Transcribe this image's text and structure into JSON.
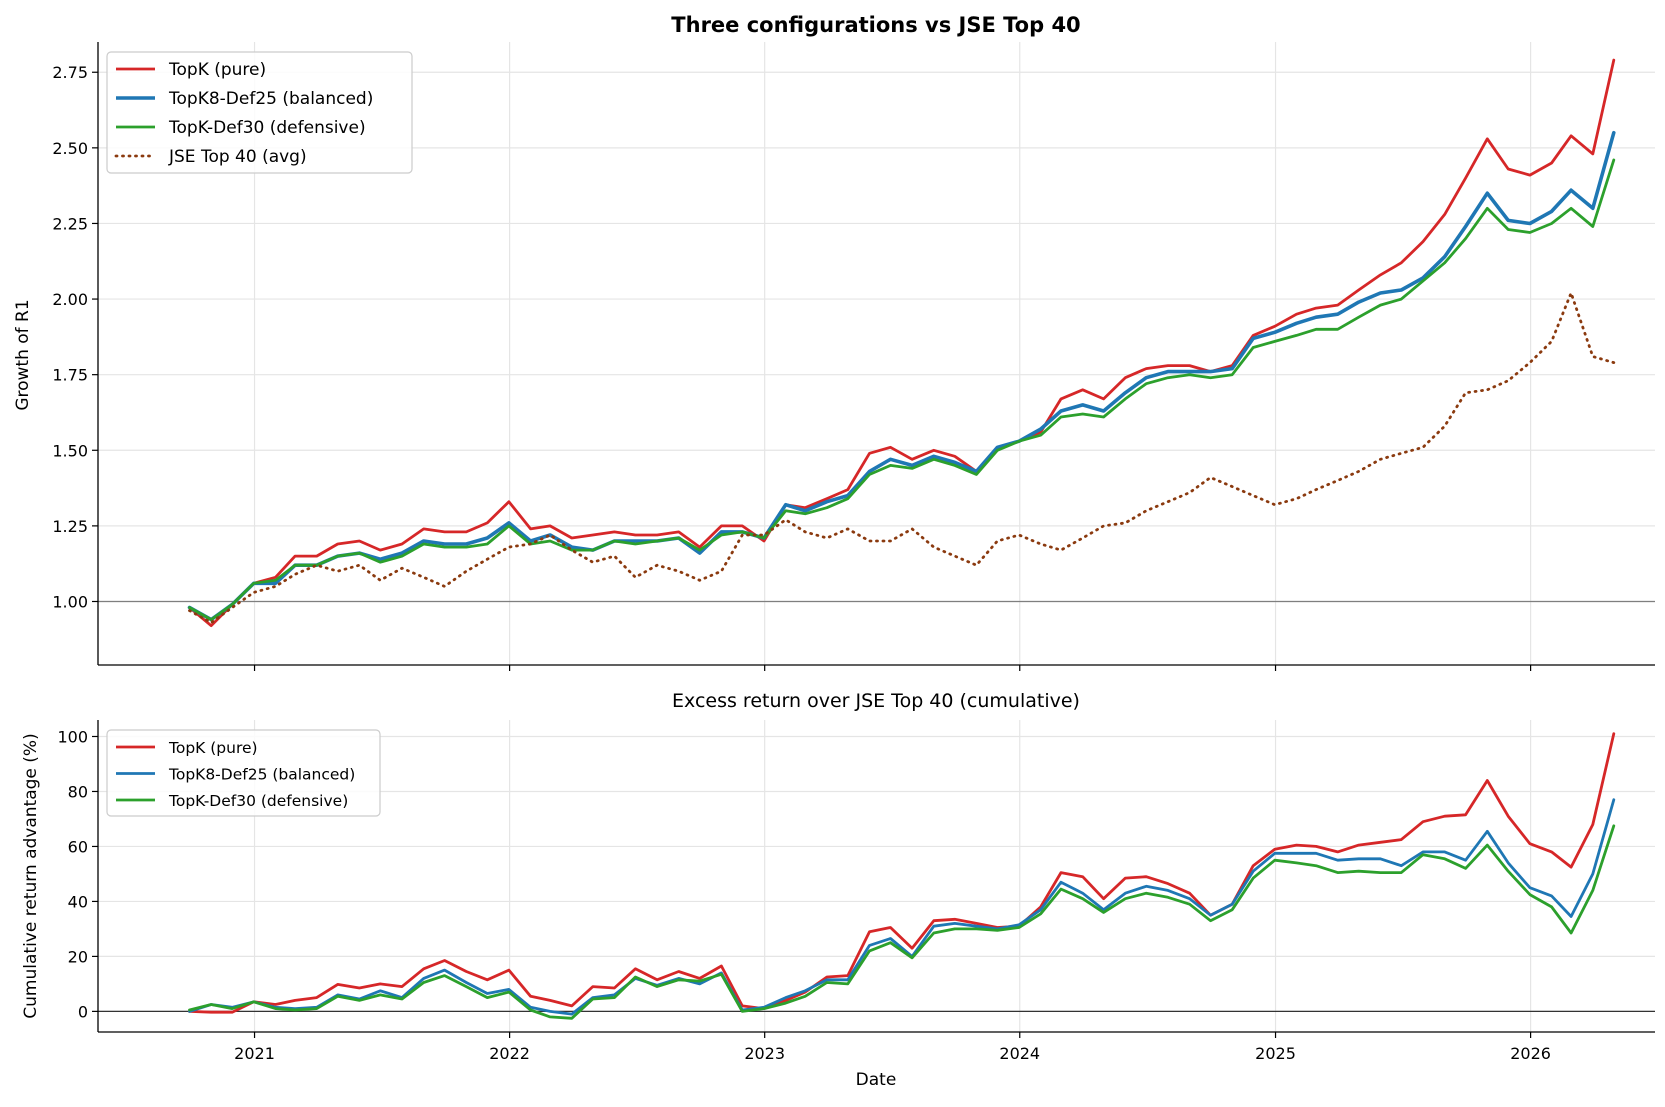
{
  "figure": {
    "xlabel": "Date",
    "x_ticks": [
      "2021",
      "2022",
      "2023",
      "2024",
      "2025",
      "2026"
    ],
    "colors": {
      "topk": "#d62728",
      "balanced": "#1f77b4",
      "defensive": "#2ca02c",
      "jse": "#8b3a0f",
      "grid": "#e5e5e5",
      "axis": "#000000"
    }
  },
  "chart_data": [
    {
      "type": "line",
      "title": "Three configurations vs JSE Top 40",
      "xlabel": "",
      "ylabel": "Growth of R1",
      "ylim": [
        0.79,
        2.85
      ],
      "xlim": [
        "2020-05-22",
        "2026-06-28"
      ],
      "y_ticks": [
        "1.00",
        "1.25",
        "1.50",
        "1.75",
        "2.00",
        "2.25",
        "2.50",
        "2.75"
      ],
      "reference_line": 1.0,
      "grid": true,
      "legend": "top-left",
      "x": [
        "2020-09",
        "2020-10",
        "2020-11",
        "2020-12",
        "2021-01",
        "2021-02",
        "2021-03",
        "2021-04",
        "2021-05",
        "2021-06",
        "2021-07",
        "2021-08",
        "2021-09",
        "2021-10",
        "2021-11",
        "2021-12",
        "2022-01",
        "2022-02",
        "2022-03",
        "2022-04",
        "2022-05",
        "2022-06",
        "2022-07",
        "2022-08",
        "2022-09",
        "2022-10",
        "2022-11",
        "2022-12",
        "2023-01",
        "2023-02",
        "2023-03",
        "2023-04",
        "2023-05",
        "2023-06",
        "2023-07",
        "2023-08",
        "2023-09",
        "2023-10",
        "2023-11",
        "2023-12",
        "2024-01",
        "2024-02",
        "2024-03",
        "2024-04",
        "2024-05",
        "2024-06",
        "2024-07",
        "2024-08",
        "2024-09",
        "2024-10",
        "2024-11",
        "2024-12",
        "2025-01",
        "2025-02",
        "2025-03",
        "2025-04",
        "2025-05",
        "2025-06",
        "2025-07",
        "2025-08",
        "2025-09",
        "2025-10",
        "2025-11",
        "2025-12",
        "2026-01",
        "2026-02",
        "2026-03",
        "2026-04"
      ],
      "series": [
        {
          "name": "TopK (pure)",
          "color": "#d62728",
          "style": "solid",
          "values": [
            0.98,
            0.92,
            0.99,
            1.06,
            1.08,
            1.15,
            1.15,
            1.19,
            1.2,
            1.17,
            1.19,
            1.24,
            1.23,
            1.23,
            1.26,
            1.33,
            1.24,
            1.25,
            1.21,
            1.22,
            1.23,
            1.22,
            1.22,
            1.23,
            1.18,
            1.25,
            1.25,
            1.2,
            1.32,
            1.31,
            1.34,
            1.37,
            1.49,
            1.51,
            1.47,
            1.5,
            1.48,
            1.43,
            1.51,
            1.53,
            1.56,
            1.67,
            1.7,
            1.67,
            1.74,
            1.77,
            1.78,
            1.78,
            1.76,
            1.78,
            1.88,
            1.91,
            1.95,
            1.97,
            1.98,
            2.03,
            2.08,
            2.12,
            2.19,
            2.28,
            2.4,
            2.53,
            2.43,
            2.41,
            2.45,
            2.54,
            2.48,
            2.79
          ]
        },
        {
          "name": "TopK8-Def25 (balanced)",
          "color": "#1f77b4",
          "style": "solid-thick",
          "values": [
            0.98,
            0.94,
            0.99,
            1.06,
            1.06,
            1.12,
            1.12,
            1.15,
            1.16,
            1.14,
            1.16,
            1.2,
            1.19,
            1.19,
            1.21,
            1.26,
            1.2,
            1.22,
            1.18,
            1.17,
            1.2,
            1.2,
            1.2,
            1.21,
            1.16,
            1.23,
            1.23,
            1.21,
            1.32,
            1.3,
            1.33,
            1.35,
            1.43,
            1.47,
            1.45,
            1.48,
            1.46,
            1.43,
            1.51,
            1.53,
            1.57,
            1.63,
            1.65,
            1.63,
            1.69,
            1.74,
            1.76,
            1.76,
            1.76,
            1.77,
            1.87,
            1.89,
            1.92,
            1.94,
            1.95,
            1.99,
            2.02,
            2.03,
            2.07,
            2.14,
            2.24,
            2.35,
            2.26,
            2.25,
            2.29,
            2.36,
            2.3,
            2.55
          ]
        },
        {
          "name": "TopK-Def30 (defensive)",
          "color": "#2ca02c",
          "style": "solid",
          "values": [
            0.98,
            0.94,
            0.99,
            1.06,
            1.07,
            1.12,
            1.12,
            1.15,
            1.16,
            1.13,
            1.15,
            1.19,
            1.18,
            1.18,
            1.19,
            1.25,
            1.19,
            1.2,
            1.17,
            1.17,
            1.2,
            1.19,
            1.2,
            1.21,
            1.17,
            1.22,
            1.23,
            1.21,
            1.3,
            1.29,
            1.31,
            1.34,
            1.42,
            1.45,
            1.44,
            1.47,
            1.45,
            1.42,
            1.5,
            1.53,
            1.55,
            1.61,
            1.62,
            1.61,
            1.67,
            1.72,
            1.74,
            1.75,
            1.74,
            1.75,
            1.84,
            1.86,
            1.88,
            1.9,
            1.9,
            1.94,
            1.98,
            2.0,
            2.06,
            2.12,
            2.2,
            2.3,
            2.23,
            2.22,
            2.25,
            2.3,
            2.24,
            2.46
          ]
        },
        {
          "name": "JSE Top 40 (avg)",
          "color": "#8b3a0f",
          "style": "dotted",
          "values": [
            0.97,
            0.93,
            0.98,
            1.03,
            1.05,
            1.09,
            1.12,
            1.1,
            1.12,
            1.07,
            1.11,
            1.08,
            1.05,
            1.1,
            1.14,
            1.18,
            1.19,
            1.22,
            1.17,
            1.13,
            1.15,
            1.08,
            1.12,
            1.1,
            1.07,
            1.1,
            1.22,
            1.22,
            1.27,
            1.23,
            1.21,
            1.24,
            1.2,
            1.2,
            1.24,
            1.18,
            1.15,
            1.12,
            1.2,
            1.22,
            1.19,
            1.17,
            1.21,
            1.25,
            1.26,
            1.3,
            1.33,
            1.36,
            1.41,
            1.38,
            1.35,
            1.32,
            1.34,
            1.37,
            1.4,
            1.43,
            1.47,
            1.49,
            1.51,
            1.58,
            1.69,
            1.7,
            1.73,
            1.79,
            1.86,
            2.02,
            1.81,
            1.79
          ]
        }
      ]
    },
    {
      "type": "line",
      "title": "Excess return over JSE Top 40 (cumulative)",
      "xlabel": "Date",
      "ylabel": "Cumulative return advantage (%)",
      "ylim": [
        -7.5,
        106
      ],
      "xlim": [
        "2020-05-22",
        "2026-06-28"
      ],
      "y_ticks": [
        "0",
        "20",
        "40",
        "60",
        "80",
        "100"
      ],
      "reference_line": 0,
      "grid": true,
      "legend": "top-left",
      "x": [
        "2020-09",
        "2020-10",
        "2020-11",
        "2020-12",
        "2021-01",
        "2021-02",
        "2021-03",
        "2021-04",
        "2021-05",
        "2021-06",
        "2021-07",
        "2021-08",
        "2021-09",
        "2021-10",
        "2021-11",
        "2021-12",
        "2022-01",
        "2022-02",
        "2022-03",
        "2022-04",
        "2022-05",
        "2022-06",
        "2022-07",
        "2022-08",
        "2022-09",
        "2022-10",
        "2022-11",
        "2022-12",
        "2023-01",
        "2023-02",
        "2023-03",
        "2023-04",
        "2023-05",
        "2023-06",
        "2023-07",
        "2023-08",
        "2023-09",
        "2023-10",
        "2023-11",
        "2023-12",
        "2024-01",
        "2024-02",
        "2024-03",
        "2024-04",
        "2024-05",
        "2024-06",
        "2024-07",
        "2024-08",
        "2024-09",
        "2024-10",
        "2024-11",
        "2024-12",
        "2025-01",
        "2025-02",
        "2025-03",
        "2025-04",
        "2025-05",
        "2025-06",
        "2025-07",
        "2025-08",
        "2025-09",
        "2025-10",
        "2025-11",
        "2025-12",
        "2026-01",
        "2026-02",
        "2026-03",
        "2026-04"
      ],
      "series": [
        {
          "name": "TopK (pure)",
          "color": "#d62728",
          "values": [
            0,
            -0.3,
            -0.3,
            3.5,
            2.5,
            4,
            5,
            9.8,
            8.5,
            10,
            9,
            15.5,
            18.5,
            14.5,
            11.5,
            15,
            5.5,
            4,
            2,
            9,
            8.5,
            15.5,
            11.5,
            14.5,
            12,
            16.5,
            2,
            1,
            4,
            7,
            12.5,
            13,
            29,
            30.5,
            23,
            33,
            33.5,
            32,
            30.5,
            31,
            38,
            50.5,
            49,
            41,
            48.5,
            49,
            46.5,
            43,
            35,
            39,
            53,
            59,
            60.5,
            60,
            58,
            60.5,
            61.5,
            62.5,
            69,
            71,
            71.5,
            84,
            71,
            61,
            58,
            52.5,
            68,
            101
          ]
        },
        {
          "name": "TopK8-Def25 (balanced)",
          "color": "#1f77b4",
          "values": [
            0,
            2.5,
            1.5,
            3.5,
            1.5,
            1,
            1.5,
            6,
            4.5,
            7.5,
            5,
            12,
            15,
            10.5,
            6.5,
            8,
            1.5,
            0,
            -1,
            5,
            6,
            12,
            9.5,
            12,
            10,
            14,
            0.5,
            1.5,
            5,
            7.5,
            11.5,
            11.5,
            24,
            26.5,
            20,
            31,
            32,
            31,
            30,
            31.5,
            37,
            47,
            43,
            37,
            43,
            45.5,
            44,
            41,
            35,
            39,
            51,
            57.5,
            57.5,
            57.5,
            55,
            55.5,
            55.5,
            53,
            58,
            58,
            55,
            65.5,
            54,
            45,
            42,
            34.5,
            50,
            77
          ]
        },
        {
          "name": "TopK-Def30 (defensive)",
          "color": "#2ca02c",
          "values": [
            0.5,
            2.5,
            1,
            3.5,
            1,
            0.5,
            1,
            5.5,
            4,
            6,
            4.5,
            10.5,
            13,
            9,
            5,
            7,
            0.5,
            -2,
            -2.5,
            4.5,
            5,
            12.5,
            9,
            11.5,
            11,
            13.5,
            0,
            1,
            3,
            5.5,
            10.5,
            10,
            22,
            25,
            19.5,
            28.5,
            30,
            30,
            29.5,
            30.5,
            35.5,
            44.5,
            41,
            36,
            41,
            43,
            41.5,
            39,
            33,
            37,
            48.5,
            55,
            54,
            53,
            50.5,
            51,
            50.5,
            50.5,
            57,
            55.5,
            52,
            60.5,
            51,
            42.5,
            38,
            28.5,
            44,
            67.5
          ]
        }
      ]
    }
  ]
}
